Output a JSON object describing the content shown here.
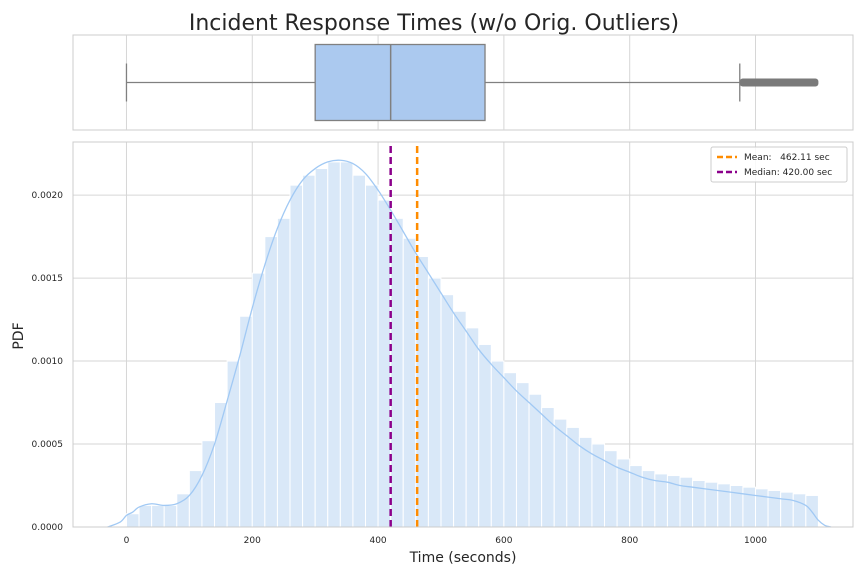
{
  "chart_data": {
    "type": "histogram",
    "title": "Incident Response Times (w/o Orig. Outliers)",
    "xlabel": "Time (seconds)",
    "ylabel": "PDF",
    "xlim": [
      -85,
      1155
    ],
    "ylim": [
      0,
      0.00232
    ],
    "x_ticks": [
      0,
      200,
      400,
      600,
      800,
      1000
    ],
    "y_ticks": [
      0.0,
      0.0005,
      0.001,
      0.0015,
      0.002
    ],
    "y_tick_labels": [
      "0.0000",
      "0.0005",
      "0.0010",
      "0.0015",
      "0.0020"
    ],
    "grid": true,
    "legend_position": "top-right",
    "colors": {
      "bar": "#d9e8f8",
      "kde": "#a1c9f4",
      "box": "#abc9ef",
      "whisker": "#808080",
      "mean": "#ff8c00",
      "median": "#8b008b",
      "grid": "#d6d6d6",
      "spine": "#cccccc"
    },
    "histogram": {
      "bin_start": 0,
      "bin_width": 20,
      "values": [
        8e-05,
        0.00013,
        0.00013,
        0.00013,
        0.0002,
        0.00034,
        0.00052,
        0.00075,
        0.001,
        0.00127,
        0.00153,
        0.00175,
        0.00186,
        0.00206,
        0.00212,
        0.00216,
        0.0022,
        0.0022,
        0.00212,
        0.00206,
        0.00197,
        0.00186,
        0.00174,
        0.00163,
        0.0015,
        0.0014,
        0.0013,
        0.0012,
        0.0011,
        0.001,
        0.00093,
        0.00087,
        0.0008,
        0.00072,
        0.00065,
        0.0006,
        0.00054,
        0.0005,
        0.00046,
        0.00041,
        0.00037,
        0.00034,
        0.00032,
        0.00031,
        0.0003,
        0.00028,
        0.00027,
        0.00026,
        0.00025,
        0.00024,
        0.00023,
        0.00022,
        0.00021,
        0.0002,
        0.00019
      ]
    },
    "kde": {
      "x": [
        -30,
        -10,
        0,
        10,
        20,
        40,
        60,
        80,
        100,
        120,
        140,
        160,
        180,
        200,
        220,
        240,
        260,
        280,
        300,
        320,
        340,
        360,
        380,
        400,
        420,
        440,
        460,
        480,
        500,
        520,
        540,
        560,
        580,
        600,
        620,
        640,
        660,
        680,
        700,
        720,
        740,
        760,
        780,
        800,
        820,
        840,
        860,
        880,
        900,
        920,
        940,
        960,
        980,
        1000,
        1020,
        1040,
        1060,
        1080,
        1090,
        1100,
        1110,
        1120
      ],
      "y": [
        0.0,
        3e-05,
        7e-05,
        9e-05,
        0.00012,
        0.00014,
        0.00013,
        0.00014,
        0.00019,
        0.00031,
        0.0005,
        0.00076,
        0.00103,
        0.00132,
        0.00158,
        0.0018,
        0.00197,
        0.00209,
        0.00216,
        0.0022,
        0.00221,
        0.00219,
        0.00213,
        0.00203,
        0.00191,
        0.00178,
        0.00165,
        0.00153,
        0.00141,
        0.00129,
        0.00118,
        0.00107,
        0.00098,
        0.0009,
        0.00082,
        0.00075,
        0.00068,
        0.00061,
        0.00055,
        0.00049,
        0.00044,
        0.0004,
        0.00036,
        0.00033,
        0.0003,
        0.00028,
        0.00027,
        0.00025,
        0.00024,
        0.00023,
        0.00022,
        0.00021,
        0.0002,
        0.00019,
        0.00018,
        0.00017,
        0.00016,
        0.00013,
        9e-05,
        4e-05,
        1e-05,
        0.0
      ]
    },
    "boxplot": {
      "whisker_low": 0,
      "q1": 300,
      "median": 420,
      "q3": 570,
      "whisker_high": 975,
      "outliers_from": 975,
      "outliers_to": 1100
    },
    "lines": [
      {
        "name": "Mean:   462.11 sec",
        "value": 462.11,
        "color": "#ff8c00"
      },
      {
        "name": "Median: 420.00 sec",
        "value": 420.0,
        "color": "#8b008b"
      }
    ]
  }
}
